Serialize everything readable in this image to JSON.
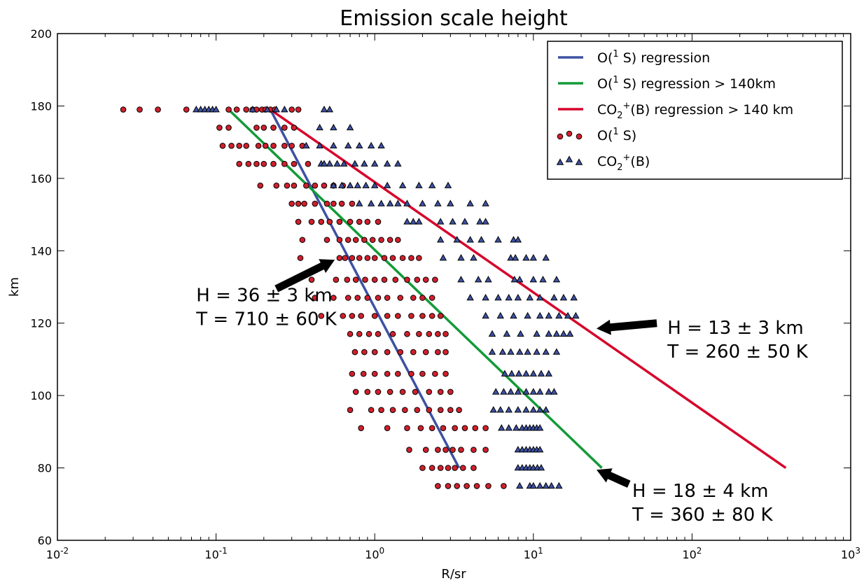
{
  "chart_data": {
    "type": "scatter",
    "title": "Emission scale height",
    "xlabel": "R/sr",
    "ylabel": "km",
    "xscale": "log",
    "xlim": [
      0.01,
      1000
    ],
    "ylim": [
      60,
      200
    ],
    "grid": false,
    "legend_position": "top-right",
    "x_ticks": [
      {
        "base": "10",
        "exp": "-2"
      },
      {
        "base": "10",
        "exp": "-1"
      },
      {
        "base": "10",
        "exp": "0"
      },
      {
        "base": "10",
        "exp": "1"
      },
      {
        "base": "10",
        "exp": "2"
      },
      {
        "base": "10",
        "exp": "3"
      }
    ],
    "y_ticks": [
      "60",
      "80",
      "100",
      "120",
      "140",
      "160",
      "180",
      "200"
    ],
    "lines": [
      {
        "name": "O(1 S) regression",
        "legend_parts": [
          "O(",
          "1",
          " S) regression"
        ],
        "color": "#3d51a3",
        "points": [
          [
            0.22,
            179
          ],
          [
            3.4,
            80
          ]
        ]
      },
      {
        "name": "O(1 S) regression > 140km",
        "legend_parts": [
          "O(",
          "1",
          " S) regression > 140km"
        ],
        "color": "#139a38",
        "points": [
          [
            0.12,
            179
          ],
          [
            27,
            80
          ]
        ]
      },
      {
        "name": "CO2+(B) regression > 140 km",
        "legend_parts": [
          "CO",
          "2",
          "+",
          "(B) regression > 140 km"
        ],
        "color": "#d6042b",
        "points": [
          [
            0.22,
            179
          ],
          [
            390,
            80
          ]
        ]
      }
    ],
    "scatter_series": [
      {
        "name": "O(1 S)",
        "legend_parts": [
          "O(",
          "1",
          " S)"
        ],
        "marker": "circle",
        "color": "#d21f2c",
        "rows": [
          {
            "y": 179,
            "x": [
              0.026,
              0.033,
              0.043,
              0.065,
              0.12,
              0.135,
              0.155,
              0.17,
              0.18,
              0.195,
              0.205,
              0.22,
              0.235,
              0.3,
              0.33
            ]
          },
          {
            "y": 174,
            "x": [
              0.105,
              0.12,
              0.18,
              0.2,
              0.23,
              0.27,
              0.31
            ]
          },
          {
            "y": 169,
            "x": [
              0.11,
              0.125,
              0.14,
              0.155,
              0.185,
              0.205,
              0.23,
              0.27,
              0.3,
              0.35
            ]
          },
          {
            "y": 164,
            "x": [
              0.14,
              0.16,
              0.18,
              0.2,
              0.23,
              0.27,
              0.31,
              0.38
            ]
          },
          {
            "y": 158,
            "x": [
              0.19,
              0.24,
              0.28,
              0.31,
              0.37,
              0.42,
              0.48,
              0.55,
              0.63
            ]
          },
          {
            "y": 153,
            "x": [
              0.3,
              0.33,
              0.36,
              0.42,
              0.5,
              0.55,
              0.62,
              0.72
            ]
          },
          {
            "y": 148,
            "x": [
              0.33,
              0.4,
              0.46,
              0.52,
              0.6,
              0.7,
              0.8,
              0.9,
              1.05
            ]
          },
          {
            "y": 143,
            "x": [
              0.35,
              0.5,
              0.6,
              0.68,
              0.76,
              0.86,
              0.97,
              1.1,
              1.25,
              1.4
            ]
          },
          {
            "y": 138,
            "x": [
              0.34,
              0.6,
              0.65,
              0.72,
              0.8,
              0.9,
              1.0,
              1.15,
              1.3,
              1.5,
              1.7,
              1.9
            ]
          },
          {
            "y": 132,
            "x": [
              0.4,
              0.57,
              0.67,
              0.76,
              0.87,
              1.0,
              1.15,
              1.35,
              1.6,
              1.85,
              2.1,
              2.4
            ]
          },
          {
            "y": 127,
            "x": [
              0.42,
              0.55,
              0.68,
              0.78,
              0.9,
              1.05,
              1.2,
              1.45,
              1.75,
              2.0,
              2.3
            ]
          },
          {
            "y": 122,
            "x": [
              0.46,
              0.63,
              0.72,
              0.82,
              1.0,
              1.2,
              1.4,
              1.7,
              2.0,
              2.3,
              2.6
            ]
          },
          {
            "y": 117,
            "x": [
              0.7,
              0.8,
              0.92,
              1.05,
              1.3,
              1.6,
              1.9,
              2.2,
              2.5,
              2.8
            ]
          },
          {
            "y": 112,
            "x": [
              0.75,
              0.86,
              1.0,
              1.2,
              1.45,
              1.75,
              2.1,
              2.5,
              2.8
            ]
          },
          {
            "y": 106,
            "x": [
              0.72,
              0.85,
              1.0,
              1.2,
              1.4,
              1.7,
              2.0,
              2.4,
              2.8
            ]
          },
          {
            "y": 101,
            "x": [
              0.76,
              0.9,
              1.05,
              1.25,
              1.5,
              1.8,
              2.2,
              2.6,
              3.0
            ]
          },
          {
            "y": 96,
            "x": [
              0.7,
              0.95,
              1.1,
              1.3,
              1.55,
              1.85,
              2.2,
              2.6,
              3.0,
              3.4
            ]
          },
          {
            "y": 91,
            "x": [
              0.82,
              1.2,
              1.6,
              1.95,
              2.3,
              2.7,
              3.2,
              3.7,
              4.3,
              5.0
            ]
          },
          {
            "y": 85,
            "x": [
              1.65,
              2.1,
              2.5,
              2.8,
              3.1,
              3.5,
              4.2,
              5.0
            ]
          },
          {
            "y": 80,
            "x": [
              2.0,
              2.3,
              2.6,
              2.9,
              3.2,
              3.6,
              4.2
            ]
          },
          {
            "y": 75,
            "x": [
              2.5,
              2.9,
              3.3,
              3.8,
              4.4,
              5.2,
              6.5
            ]
          }
        ]
      },
      {
        "name": "CO2+(B)",
        "legend_parts": [
          "CO",
          "2",
          "+",
          "(B)"
        ],
        "marker": "triangle",
        "color": "#3d51a3",
        "rows": [
          {
            "y": 179,
            "x": [
              0.075,
              0.08,
              0.085,
              0.09,
              0.095,
              0.1,
              0.17,
              0.21,
              0.24,
              0.27,
              0.48,
              0.52
            ]
          },
          {
            "y": 174,
            "x": [
              0.45,
              0.55,
              0.7
            ]
          },
          {
            "y": 169,
            "x": [
              0.37,
              0.45,
              0.55,
              0.68,
              0.8,
              0.95,
              1.1
            ]
          },
          {
            "y": 164,
            "x": [
              0.46,
              0.48,
              0.52,
              0.58,
              0.64,
              0.75,
              0.86,
              1.0,
              1.2,
              1.4
            ]
          },
          {
            "y": 158,
            "x": [
              0.55,
              0.62,
              0.7,
              0.78,
              0.88,
              1.0,
              1.2,
              1.5,
              1.9,
              2.3,
              2.9
            ]
          },
          {
            "y": 153,
            "x": [
              0.8,
              0.95,
              1.1,
              1.25,
              1.4,
              1.6,
              2.0,
              2.5,
              3.0,
              4.0,
              5.0
            ]
          },
          {
            "y": 148,
            "x": [
              1.6,
              1.75,
              1.9,
              2.6,
              3.1,
              3.7,
              4.6,
              5.0
            ]
          },
          {
            "y": 143,
            "x": [
              2.6,
              3.3,
              4.0,
              4.7,
              6.0,
              7.5,
              8.0
            ]
          },
          {
            "y": 138,
            "x": [
              2.7,
              3.5,
              4.2,
              7.2,
              7.7,
              9.0,
              10.0,
              12.0
            ]
          },
          {
            "y": 132,
            "x": [
              3.5,
              4.5,
              5.2,
              7.6,
              8.2,
              10.0,
              11.5,
              14.0
            ]
          },
          {
            "y": 127,
            "x": [
              4.0,
              5.0,
              6.0,
              7.0,
              8.0,
              9.5,
              11.0,
              13.5,
              15.5,
              18.0
            ]
          },
          {
            "y": 122,
            "x": [
              5.0,
              6.2,
              7.5,
              9.2,
              11.0,
              12.5,
              14.5,
              16.5,
              18.5
            ]
          },
          {
            "y": 117,
            "x": [
              5.5,
              6.8,
              8.3,
              10.5,
              12.5,
              14.0,
              15.5,
              17.0
            ]
          },
          {
            "y": 112,
            "x": [
              5.5,
              6.4,
              7.2,
              8.2,
              9.2,
              10.5,
              12.0,
              14.0
            ]
          },
          {
            "y": 106,
            "x": [
              6.6,
              7.3,
              8.1,
              9.0,
              10.0,
              11.2,
              12.5
            ]
          },
          {
            "y": 101,
            "x": [
              5.8,
              6.5,
              7.2,
              8.0,
              9.0,
              10.0,
              11.0,
              12.5,
              13.5
            ]
          },
          {
            "y": 96,
            "x": [
              5.6,
              6.2,
              7.0,
              8.0,
              9.0,
              10.0,
              11.0,
              12.0
            ]
          },
          {
            "y": 91,
            "x": [
              6.3,
              7.0,
              7.8,
              8.5,
              9.0,
              9.5,
              10.0,
              10.5,
              11.0
            ]
          },
          {
            "y": 85,
            "x": [
              8.0,
              8.5,
              9.0,
              9.5,
              10.0,
              10.5,
              11.0
            ]
          },
          {
            "y": 80,
            "x": [
              8.0,
              8.5,
              9.0,
              9.5,
              10.0,
              10.6,
              11.2
            ]
          },
          {
            "y": 75,
            "x": [
              8.2,
              9.5,
              10.0,
              11.0,
              12.0,
              13.0,
              14.5
            ]
          }
        ]
      }
    ],
    "annotations": [
      {
        "id": "o1s-all",
        "lines": [
          "H = 36 ± 3 km",
          "T = 710 ± 60 K"
        ],
        "text_x": 0.075,
        "text_y": 126,
        "arrow_from": [
          0.24,
          129.5
        ],
        "arrow_to": [
          0.56,
          137.5
        ]
      },
      {
        "id": "co2",
        "lines": [
          "H = 13 ± 3 km",
          "T = 260 ± 50 K"
        ],
        "text_x": 70,
        "text_y": 117,
        "arrow_from": [
          60,
          120
        ],
        "arrow_to": [
          25,
          118.5
        ]
      },
      {
        "id": "o1s-high",
        "lines": [
          "H = 18 ± 4 km",
          "T = 360 ± 80 K"
        ],
        "text_x": 42,
        "text_y": 72,
        "arrow_from": [
          40,
          75.5
        ],
        "arrow_to": [
          25,
          79.5
        ]
      }
    ]
  }
}
